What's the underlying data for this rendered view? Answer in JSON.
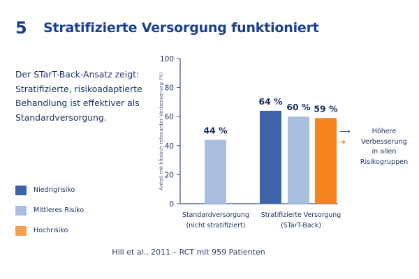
{
  "slide": {
    "number": "5",
    "title": "Stratifizierte Versorgung funktioniert",
    "intro": "Der STarT-Back-Ansatz zeigt: Stratifizierte, risikoadaptierte Behandlung ist effektiver als Standardversorgung.",
    "citation": "Hill et al., 2011 – RCT mit 959 Patienten"
  },
  "legend": [
    {
      "label": "Niedrigrisiko",
      "color": "#3d64a8"
    },
    {
      "label": "Mittleres Risiko",
      "color": "#a9bfe2"
    },
    {
      "label": "Hochrisiko",
      "color": "#f6a04d"
    }
  ],
  "note": {
    "line1": "Höhere",
    "line2": "Verbesserung",
    "line3": "in allen",
    "line4": "Risikogruppen",
    "arrow_colors": [
      "#2a4a8c",
      "#f5811f"
    ]
  },
  "chart_data": {
    "type": "bar",
    "ylabel": "Anteil mit klinisch relevanter Verbesserung (%)",
    "ylim": [
      0,
      100
    ],
    "yticks": [
      0,
      20,
      40,
      60,
      80,
      100
    ],
    "groups": [
      {
        "label_line1": "Standardversorgung",
        "label_line2": "(nicht stratifiziert)"
      },
      {
        "label_line1": "Stratifizierte Versorgung",
        "label_line2": "(STarT-Back)"
      }
    ],
    "bars": [
      {
        "group": 0,
        "value": 44,
        "label": "44 %",
        "color": "#a9bfe2"
      },
      {
        "group": 1,
        "value": 64,
        "label": "64 %",
        "color": "#3d64a8"
      },
      {
        "group": 1,
        "value": 60,
        "label": "60 %",
        "color": "#a9bfe2"
      },
      {
        "group": 1,
        "value": 59,
        "label": "59 %",
        "color": "#f5811f"
      }
    ]
  }
}
